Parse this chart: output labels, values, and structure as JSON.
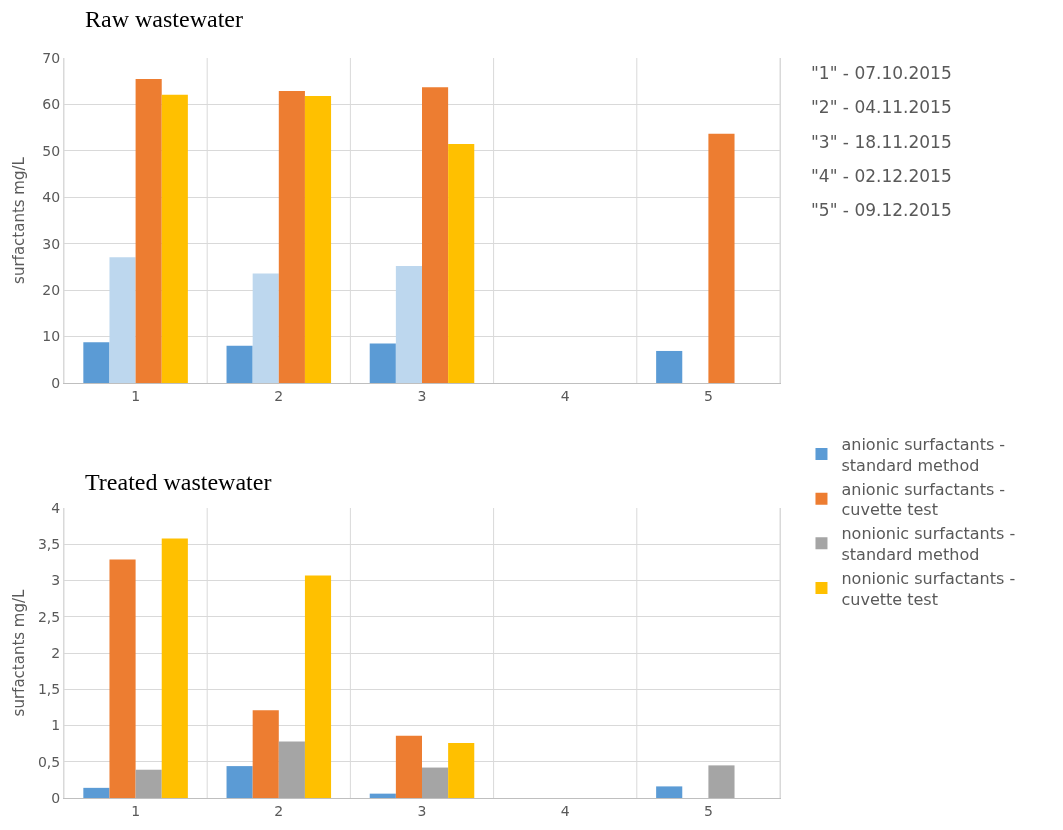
{
  "chart_data": [
    {
      "type": "bar",
      "title": "Raw wastewater",
      "ylabel": "surfactants mg/L",
      "categories": [
        "1",
        "2",
        "3",
        "4",
        "5"
      ],
      "ylim": [
        0,
        70
      ],
      "yticks": [
        0,
        10,
        20,
        30,
        40,
        50,
        60,
        70
      ],
      "grid": true,
      "legend": false,
      "annotations": [
        "\"1\" - 07.10.2015",
        "\"2\" - 04.11.2015",
        "\"3\" - 18.11.2015",
        "\"4\" - 02.12.2015",
        "\"5\" - 09.12.2015"
      ],
      "series": [
        {
          "color": "#5b9bd5",
          "values": [
            8.8,
            8.0,
            8.5,
            null,
            6.9
          ]
        },
        {
          "color": "#bdd7ee",
          "values": [
            27.1,
            23.6,
            25.2,
            null,
            null
          ]
        },
        {
          "color": "#ed7d31",
          "values": [
            65.5,
            62.9,
            63.7,
            null,
            53.7
          ]
        },
        {
          "color": "#ffc000",
          "values": [
            62.1,
            61.8,
            51.5,
            null,
            null
          ]
        }
      ]
    },
    {
      "type": "bar",
      "title": "Treated wastewater",
      "ylabel": "surfactants mg/L",
      "categories": [
        "1",
        "2",
        "3",
        "4",
        "5"
      ],
      "ylim": [
        0,
        4
      ],
      "yticks": [
        0,
        {
          "value": 0.5,
          "label": "0,5"
        },
        1,
        {
          "value": 1.5,
          "label": "1,5"
        },
        2,
        {
          "value": 2.5,
          "label": "2,5"
        },
        3,
        {
          "value": 3.5,
          "label": "3,5"
        },
        4
      ],
      "grid": true,
      "legend": "right",
      "series": [
        {
          "name": "anionic surfactants - standard method",
          "color": "#5b9bd5",
          "values": [
            0.14,
            0.44,
            0.06,
            null,
            0.16
          ]
        },
        {
          "name": "anionic surfactants - cuvette test",
          "color": "#ed7d31",
          "values": [
            3.29,
            1.21,
            0.86,
            null,
            null
          ]
        },
        {
          "name": "nonionic surfactants - standard method",
          "color": "#a5a5a5",
          "values": [
            0.39,
            0.78,
            0.42,
            null,
            0.45
          ]
        },
        {
          "name": "nonionic surfactants - cuvette test",
          "color": "#ffc000",
          "values": [
            3.58,
            3.07,
            0.76,
            null,
            null
          ]
        }
      ]
    }
  ]
}
